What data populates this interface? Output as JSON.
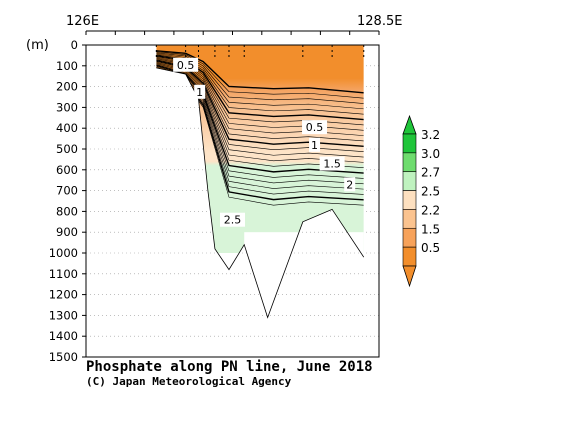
{
  "chart_data": {
    "type": "contour-section",
    "title": "Phosphate along PN line, June 2018",
    "credit": "(C) Japan Meteorological Agency",
    "ylabel": "(m)",
    "ylim": [
      0,
      1500
    ],
    "y_ticks": [
      "0",
      "100",
      "200",
      "300",
      "400",
      "500",
      "600",
      "700",
      "800",
      "900",
      "1000",
      "1100",
      "1200",
      "1300",
      "1400",
      "1500"
    ],
    "xlim": [
      126.0,
      128.5
    ],
    "x_tick_labels": [
      {
        "value": 126.0,
        "label": "126E"
      },
      {
        "value": 128.5,
        "label": "128.5E"
      }
    ],
    "grid": true,
    "stations_lon": [
      126.6,
      126.85,
      126.96,
      127.1,
      127.22,
      127.35,
      127.85,
      128.1,
      128.37
    ],
    "bottom_profile": [
      {
        "lon": 126.6,
        "depth": 110
      },
      {
        "lon": 126.85,
        "depth": 140
      },
      {
        "lon": 126.96,
        "depth": 260
      },
      {
        "lon": 127.04,
        "depth": 700
      },
      {
        "lon": 127.1,
        "depth": 980
      },
      {
        "lon": 127.22,
        "depth": 1080
      },
      {
        "lon": 127.35,
        "depth": 960
      },
      {
        "lon": 127.55,
        "depth": 1310
      },
      {
        "lon": 127.85,
        "depth": 850
      },
      {
        "lon": 128.1,
        "depth": 790
      },
      {
        "lon": 128.37,
        "depth": 1020
      }
    ],
    "contour_labels": [
      {
        "text": "0.5",
        "lon": 126.85,
        "depth": 95
      },
      {
        "text": "1",
        "lon": 126.97,
        "depth": 225
      },
      {
        "text": "0.5",
        "lon": 127.95,
        "depth": 395
      },
      {
        "text": "1",
        "lon": 127.95,
        "depth": 480
      },
      {
        "text": "1.5",
        "lon": 128.1,
        "depth": 570
      },
      {
        "text": "2",
        "lon": 128.25,
        "depth": 670
      },
      {
        "text": "2.5",
        "lon": 127.25,
        "depth": 840
      }
    ],
    "colorbar": {
      "labels": [
        "3.2",
        "3.0",
        "2.7",
        "2.5",
        "2.2",
        "1.5",
        "0.5"
      ],
      "colors": [
        "#1fc53a",
        "#6edc6e",
        "#bff2bf",
        "#fde0c0",
        "#fbc38f",
        "#f7a25a",
        "#f28e2c"
      ],
      "extend": "both"
    }
  }
}
